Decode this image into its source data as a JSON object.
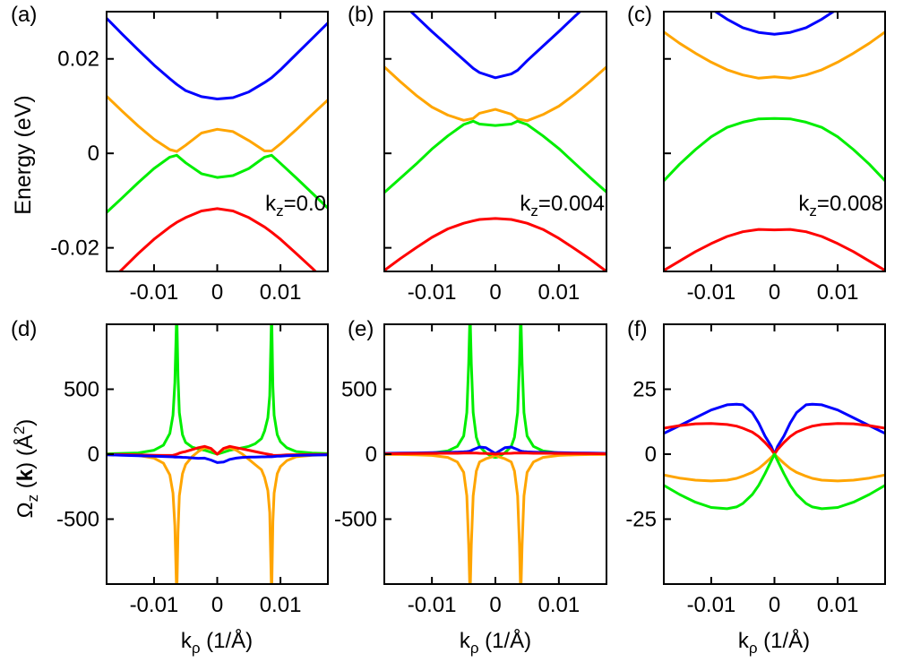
{
  "panel_letters": [
    "(a)",
    "(b)",
    "(c)",
    "(d)",
    "(e)",
    "(f)"
  ],
  "colors": {
    "blue": "#0000ff",
    "orange": "#ffa500",
    "green": "#00ee00",
    "red": "#ff0000"
  },
  "ylabel_top": "Energy (eV)",
  "ylabel_bottom": "Ω_z (k) (Å²)",
  "xlabel": "kρ (1/Å)",
  "chart_data": [
    {
      "panel": "(a)",
      "type": "line",
      "kz_label": "kz=0.0",
      "xlim": [
        -0.0175,
        0.0175
      ],
      "ylim": [
        -0.025,
        0.03
      ],
      "xticks": [
        -0.01,
        0,
        0.01
      ],
      "xticklabels": [
        "-0.01",
        "0",
        "0.01"
      ],
      "yticks": [
        -0.02,
        0,
        0.02
      ],
      "yticklabels": [
        "-0.02",
        "0",
        "0.02"
      ],
      "x": [
        -0.0175,
        -0.015,
        -0.0125,
        -0.01,
        -0.0075,
        -0.0064,
        -0.005,
        -0.0025,
        0,
        0.0025,
        0.005,
        0.0075,
        0.0086,
        0.01,
        0.0125,
        0.015,
        0.0175
      ],
      "series": [
        {
          "color": "blue",
          "values": [
            0.0286,
            0.0252,
            0.0219,
            0.0187,
            0.0158,
            0.0146,
            0.0133,
            0.012,
            0.0115,
            0.0118,
            0.013,
            0.015,
            0.016,
            0.0177,
            0.021,
            0.0243,
            0.0276
          ]
        },
        {
          "color": "orange",
          "values": [
            0.0121,
            0.0089,
            0.0058,
            0.003,
            0.0008,
            0.0004,
            0.0017,
            0.0043,
            0.0051,
            0.0046,
            0.0027,
            0.0005,
            0.0005,
            0.002,
            0.005,
            0.0082,
            0.0113
          ]
        },
        {
          "color": "green",
          "values": [
            -0.0125,
            -0.0094,
            -0.0062,
            -0.0032,
            -0.0008,
            -0.0004,
            -0.002,
            -0.0043,
            -0.0051,
            -0.0047,
            -0.0032,
            -0.0008,
            -0.0004,
            -0.0021,
            -0.0052,
            -0.0084,
            -0.0116
          ]
        },
        {
          "color": "red",
          "values": [
            -0.0277,
            -0.0245,
            -0.0212,
            -0.0182,
            -0.0156,
            -0.0146,
            -0.0136,
            -0.0122,
            -0.0117,
            -0.0122,
            -0.0136,
            -0.0156,
            -0.0167,
            -0.0182,
            -0.0212,
            -0.0243,
            -0.0276
          ]
        }
      ]
    },
    {
      "panel": "(b)",
      "type": "line",
      "kz_label": "kz=0.004",
      "xlim": [
        -0.0175,
        0.0175
      ],
      "ylim": [
        -0.025,
        0.03
      ],
      "xticks": [
        -0.01,
        0,
        0.01
      ],
      "xticklabels": [
        "-0.01",
        "0",
        "0.01"
      ],
      "yticks": [
        -0.02,
        0,
        0.02
      ],
      "yticklabels": [
        "",
        "",
        ""
      ],
      "x": [
        -0.0175,
        -0.015,
        -0.0125,
        -0.01,
        -0.0075,
        -0.005,
        -0.0035,
        -0.0025,
        0,
        0.0025,
        0.0035,
        0.005,
        0.0075,
        0.01,
        0.0125,
        0.015,
        0.0175
      ],
      "series": [
        {
          "color": "blue",
          "values": [
            0.0355,
            0.0322,
            0.029,
            0.0258,
            0.0228,
            0.0198,
            0.018,
            0.0171,
            0.016,
            0.0168,
            0.0176,
            0.0196,
            0.0227,
            0.0258,
            0.029,
            0.0321,
            0.0352
          ]
        },
        {
          "color": "orange",
          "values": [
            0.0183,
            0.0152,
            0.0123,
            0.0098,
            0.0081,
            0.007,
            0.0074,
            0.0085,
            0.0093,
            0.0083,
            0.0073,
            0.0069,
            0.0082,
            0.01,
            0.0125,
            0.0153,
            0.0183
          ]
        },
        {
          "color": "green",
          "values": [
            -0.0083,
            -0.0053,
            -0.0023,
            0.0009,
            0.0037,
            0.0061,
            0.0068,
            0.0062,
            0.0059,
            0.0062,
            0.0068,
            0.0061,
            0.0037,
            0.001,
            -0.0021,
            -0.0052,
            -0.0082
          ]
        },
        {
          "color": "red",
          "values": [
            -0.0248,
            -0.0223,
            -0.02,
            -0.0178,
            -0.016,
            -0.0148,
            -0.0143,
            -0.014,
            -0.0138,
            -0.014,
            -0.0143,
            -0.0148,
            -0.0161,
            -0.018,
            -0.0202,
            -0.0225,
            -0.025
          ]
        }
      ]
    },
    {
      "panel": "(c)",
      "type": "line",
      "kz_label": "kz=0.008",
      "xlim": [
        -0.0175,
        0.0175
      ],
      "ylim": [
        -0.025,
        0.03
      ],
      "xticks": [
        -0.01,
        0,
        0.01
      ],
      "xticklabels": [
        "-0.01",
        "0",
        "0.01"
      ],
      "yticks": [
        -0.02,
        0,
        0.02
      ],
      "yticklabels": [
        "",
        "",
        ""
      ],
      "x": [
        -0.0175,
        -0.015,
        -0.0125,
        -0.01,
        -0.0075,
        -0.005,
        -0.0025,
        0,
        0.0025,
        0.005,
        0.0075,
        0.01,
        0.0125,
        0.015,
        0.0175
      ],
      "series": [
        {
          "color": "blue",
          "values": [
            0.039,
            0.036,
            0.0332,
            0.0306,
            0.0284,
            0.0266,
            0.0256,
            0.0252,
            0.0256,
            0.0266,
            0.0284,
            0.0306,
            0.0332,
            0.036,
            0.039
          ]
        },
        {
          "color": "orange",
          "values": [
            0.0257,
            0.0233,
            0.0212,
            0.0193,
            0.0177,
            0.0166,
            0.0159,
            0.0162,
            0.0159,
            0.0166,
            0.0177,
            0.0193,
            0.0212,
            0.0233,
            0.0257
          ]
        },
        {
          "color": "green",
          "values": [
            -0.0058,
            -0.0023,
            0.0008,
            0.0035,
            0.0055,
            0.0066,
            0.0073,
            0.0074,
            0.0073,
            0.0066,
            0.0055,
            0.0035,
            0.0008,
            -0.0023,
            -0.0058
          ]
        },
        {
          "color": "red",
          "values": [
            -0.0248,
            -0.0228,
            -0.0208,
            -0.0191,
            -0.0176,
            -0.0166,
            -0.0161,
            -0.0162,
            -0.0161,
            -0.0166,
            -0.0176,
            -0.0191,
            -0.0208,
            -0.0228,
            -0.0248
          ]
        }
      ]
    },
    {
      "panel": "(d)",
      "type": "line",
      "xlim": [
        -0.0175,
        0.0175
      ],
      "ylim": [
        -1000,
        1000
      ],
      "xticks": [
        -0.01,
        0,
        0.01
      ],
      "xticklabels": [
        "-0.01",
        "0",
        "0.01"
      ],
      "yticks": [
        -500,
        0,
        500
      ],
      "yticklabels": [
        "-500",
        "0",
        "500"
      ],
      "x": [
        -0.0175,
        -0.015,
        -0.0125,
        -0.01,
        -0.0085,
        -0.0075,
        -0.007,
        -0.0067,
        -0.0064,
        -0.0062,
        -0.006,
        -0.0055,
        -0.005,
        -0.004,
        -0.003,
        -0.002,
        -0.001,
        0,
        0.001,
        0.002,
        0.003,
        0.004,
        0.005,
        0.006,
        0.007,
        0.0075,
        0.008,
        0.0083,
        0.0086,
        0.0088,
        0.009,
        0.0095,
        0.01,
        0.011,
        0.0125,
        0.015,
        0.0175
      ],
      "series": [
        {
          "color": "green",
          "values": [
            3,
            6,
            10,
            30,
            70,
            160,
            300,
            550,
            1100,
            600,
            320,
            150,
            90,
            55,
            40,
            30,
            15,
            0,
            15,
            30,
            40,
            50,
            60,
            80,
            120,
            180,
            280,
            450,
            1100,
            520,
            300,
            150,
            95,
            50,
            20,
            8,
            4
          ]
        },
        {
          "color": "orange",
          "values": [
            -3,
            -6,
            -10,
            -30,
            -70,
            -160,
            -300,
            -550,
            -1100,
            -600,
            -320,
            -150,
            -80,
            -20,
            20,
            50,
            40,
            0,
            40,
            50,
            30,
            0,
            -40,
            -80,
            -120,
            -180,
            -280,
            -450,
            -1100,
            -520,
            -300,
            -150,
            -95,
            -50,
            -20,
            -8,
            -4
          ]
        },
        {
          "color": "red",
          "values": [
            -2,
            -3,
            -5,
            -8,
            -10,
            -10,
            -8,
            -5,
            0,
            3,
            8,
            15,
            20,
            35,
            50,
            60,
            45,
            0,
            45,
            60,
            50,
            40,
            30,
            20,
            10,
            5,
            0,
            -3,
            -5,
            -8,
            -10,
            -10,
            -8,
            -5,
            -4,
            -3,
            -2
          ]
        },
        {
          "color": "blue",
          "values": [
            -5,
            -8,
            -12,
            -15,
            -18,
            -20,
            -21,
            -22,
            -22,
            -22,
            -23,
            -24,
            -25,
            -28,
            -32,
            -30,
            -45,
            -65,
            -60,
            -40,
            -30,
            -25,
            -23,
            -22,
            -21,
            -21,
            -20,
            -20,
            -20,
            -19,
            -18,
            -16,
            -15,
            -12,
            -10,
            -7,
            -5
          ]
        }
      ]
    },
    {
      "panel": "(e)",
      "type": "line",
      "xlim": [
        -0.0175,
        0.0175
      ],
      "ylim": [
        -1000,
        1000
      ],
      "xticks": [
        -0.01,
        0,
        0.01
      ],
      "xticklabels": [
        "-0.01",
        "0",
        "0.01"
      ],
      "yticks": [
        -500,
        0,
        500
      ],
      "yticklabels": [
        "-500",
        "0",
        "500"
      ],
      "x": [
        -0.0175,
        -0.015,
        -0.0125,
        -0.01,
        -0.0075,
        -0.006,
        -0.005,
        -0.0045,
        -0.0042,
        -0.004,
        -0.0038,
        -0.0035,
        -0.003,
        -0.0025,
        -0.0015,
        -0.0005,
        0,
        0.0005,
        0.0015,
        0.0025,
        0.003,
        0.0035,
        0.0038,
        0.004,
        0.0042,
        0.0045,
        0.005,
        0.006,
        0.0075,
        0.01,
        0.0125,
        0.015,
        0.0175
      ],
      "series": [
        {
          "color": "green",
          "values": [
            2,
            3,
            5,
            10,
            25,
            60,
            140,
            320,
            700,
            1100,
            700,
            320,
            130,
            60,
            10,
            -20,
            -25,
            -20,
            10,
            60,
            130,
            320,
            700,
            1100,
            700,
            320,
            140,
            60,
            25,
            10,
            5,
            3,
            2
          ]
        },
        {
          "color": "orange",
          "values": [
            -2,
            -3,
            -5,
            -10,
            -25,
            -60,
            -140,
            -320,
            -700,
            -1100,
            -700,
            -320,
            -130,
            -60,
            -35,
            -20,
            -10,
            -20,
            -35,
            -60,
            -130,
            -320,
            -700,
            -1100,
            -700,
            -320,
            -140,
            -60,
            -25,
            -10,
            -5,
            -3,
            -2
          ]
        },
        {
          "color": "blue",
          "values": [
            6,
            8,
            10,
            12,
            14,
            16,
            18,
            20,
            22,
            24,
            28,
            35,
            45,
            55,
            50,
            20,
            5,
            20,
            50,
            55,
            45,
            35,
            28,
            24,
            22,
            20,
            18,
            16,
            14,
            12,
            10,
            8,
            6
          ]
        },
        {
          "color": "red",
          "values": [
            3,
            4,
            5,
            6,
            7,
            7,
            8,
            8,
            8,
            8,
            8,
            8,
            8,
            7,
            6,
            3,
            0,
            3,
            6,
            7,
            8,
            8,
            8,
            8,
            8,
            8,
            8,
            7,
            7,
            6,
            5,
            4,
            3
          ]
        }
      ]
    },
    {
      "panel": "(f)",
      "type": "line",
      "xlim": [
        -0.0175,
        0.0175
      ],
      "ylim": [
        -50,
        50
      ],
      "xticks": [
        -0.01,
        0,
        0.01
      ],
      "xticklabels": [
        "-0.01",
        "0",
        "0.01"
      ],
      "yticks": [
        -25,
        0,
        25
      ],
      "yticklabels": [
        "-25",
        "0",
        "25"
      ],
      "x": [
        -0.0175,
        -0.015,
        -0.0125,
        -0.01,
        -0.0075,
        -0.006,
        -0.005,
        -0.0035,
        -0.0025,
        -0.0015,
        -0.0005,
        0,
        0.0005,
        0.0015,
        0.0025,
        0.0035,
        0.005,
        0.006,
        0.0075,
        0.01,
        0.0125,
        0.015,
        0.0175
      ],
      "series": [
        {
          "color": "blue",
          "values": [
            8,
            11,
            14,
            17,
            19,
            19.2,
            19,
            16,
            12,
            7,
            3,
            0,
            3,
            7,
            12,
            16,
            19,
            19.2,
            19,
            17,
            14,
            11,
            8
          ]
        },
        {
          "color": "red",
          "values": [
            10,
            11,
            11.7,
            11.8,
            11.4,
            10.8,
            10,
            8.5,
            6.8,
            4.5,
            1.8,
            0,
            1.8,
            4.5,
            6.8,
            8.5,
            10,
            10.8,
            11.4,
            11.8,
            11.7,
            11,
            10
          ]
        },
        {
          "color": "orange",
          "values": [
            -8,
            -9.2,
            -10,
            -10.3,
            -10,
            -9.3,
            -8.5,
            -7,
            -5.5,
            -3.5,
            -1.2,
            0,
            -1.2,
            -3.5,
            -5.5,
            -7,
            -8.5,
            -9.3,
            -10,
            -10.3,
            -10,
            -9.2,
            -8
          ]
        },
        {
          "color": "green",
          "values": [
            -12,
            -15.5,
            -18.5,
            -20.5,
            -21,
            -20.3,
            -19,
            -15.5,
            -12,
            -7.5,
            -2.5,
            0,
            -2.5,
            -7.5,
            -12,
            -15.5,
            -19,
            -20.3,
            -21,
            -20.5,
            -18.5,
            -15.5,
            -12
          ]
        }
      ]
    }
  ]
}
